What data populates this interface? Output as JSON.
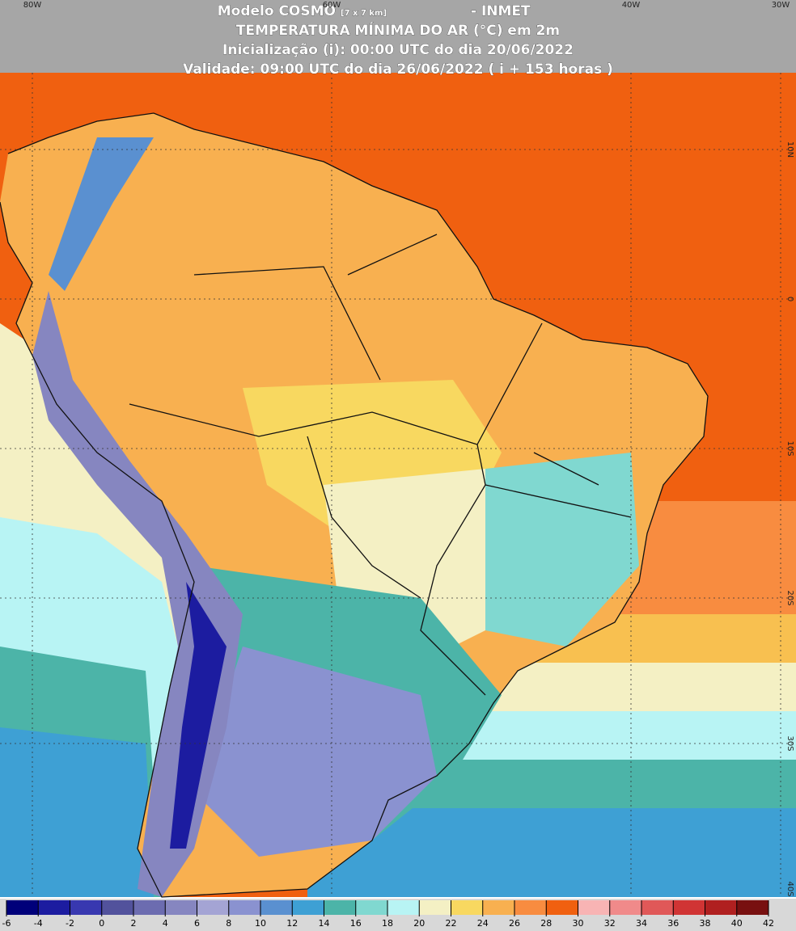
{
  "header": {
    "model": "Modelo COSMO",
    "resolution": "[7 x 7 km]",
    "source": "- INMET",
    "title": "TEMPERATURA MÍNIMA DO AR (°C) em 2m",
    "init": "Inicialização (i): 00:00 UTC do dia 20/06/2022",
    "valid": "Validade: 09:00 UTC do dia 26/06/2022 ( i + 153 horas )"
  },
  "longitudes": [
    "80W",
    "60W",
    "40W",
    "30W"
  ],
  "latitudes": [
    "10N",
    "0",
    "10S",
    "20S",
    "30S",
    "40S"
  ],
  "colorbar": {
    "ticks": [
      -6,
      -4,
      -2,
      0,
      2,
      4,
      6,
      8,
      10,
      12,
      14,
      16,
      18,
      20,
      22,
      24,
      26,
      28,
      30,
      32,
      34,
      36,
      38,
      40,
      42
    ],
    "colors": [
      "#00007a",
      "#1c1ca0",
      "#3838b0",
      "#52529c",
      "#6c6cb0",
      "#8686c0",
      "#a4a4d4",
      "#8a92d0",
      "#5a90d0",
      "#3ea0d4",
      "#4cb4a8",
      "#80d8d0",
      "#b8f4f4",
      "#f4f0c4",
      "#f8d860",
      "#f8b050",
      "#f88c40",
      "#f06010",
      "#f8b4b4",
      "#f08a8a",
      "#e05858",
      "#d03434",
      "#b02020",
      "#781010"
    ]
  }
}
